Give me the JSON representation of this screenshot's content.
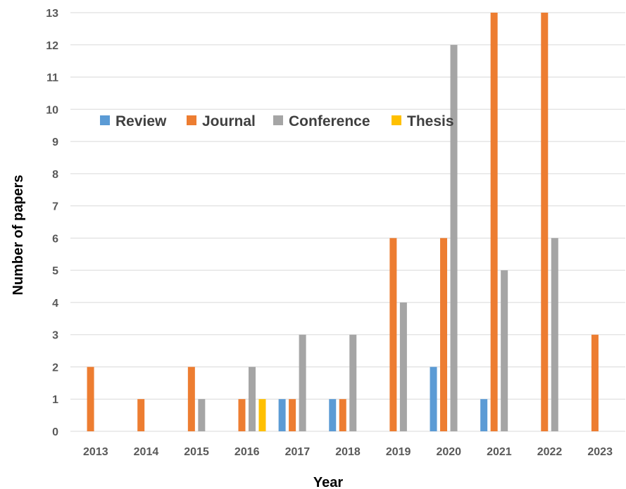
{
  "chart_data": {
    "type": "bar",
    "title": "",
    "xlabel": "Year",
    "ylabel": "Number of papers",
    "categories": [
      "2013",
      "2014",
      "2015",
      "2016",
      "2017",
      "2018",
      "2019",
      "2020",
      "2021",
      "2022",
      "2023"
    ],
    "series": [
      {
        "name": "Review",
        "color": "#5b9bd5",
        "values": [
          0,
          0,
          0,
          0,
          1,
          1,
          0,
          2,
          1,
          0,
          0
        ]
      },
      {
        "name": "Journal",
        "color": "#ed7d31",
        "values": [
          2,
          1,
          2,
          1,
          1,
          1,
          6,
          6,
          13,
          13,
          3
        ]
      },
      {
        "name": "Conference",
        "color": "#a5a5a5",
        "values": [
          0,
          0,
          1,
          2,
          3,
          3,
          4,
          12,
          5,
          6,
          0
        ]
      },
      {
        "name": "Thesis",
        "color": "#ffc000",
        "values": [
          0,
          0,
          0,
          1,
          0,
          0,
          0,
          0,
          0,
          0,
          0
        ]
      }
    ],
    "ylim": [
      0,
      13
    ],
    "yticks": [
      "0",
      "1",
      "2",
      "3",
      "4",
      "5",
      "6",
      "7",
      "8",
      "9",
      "10",
      "11",
      "12",
      "13"
    ],
    "grid": true,
    "legend_position": "upper-left inside plot"
  }
}
